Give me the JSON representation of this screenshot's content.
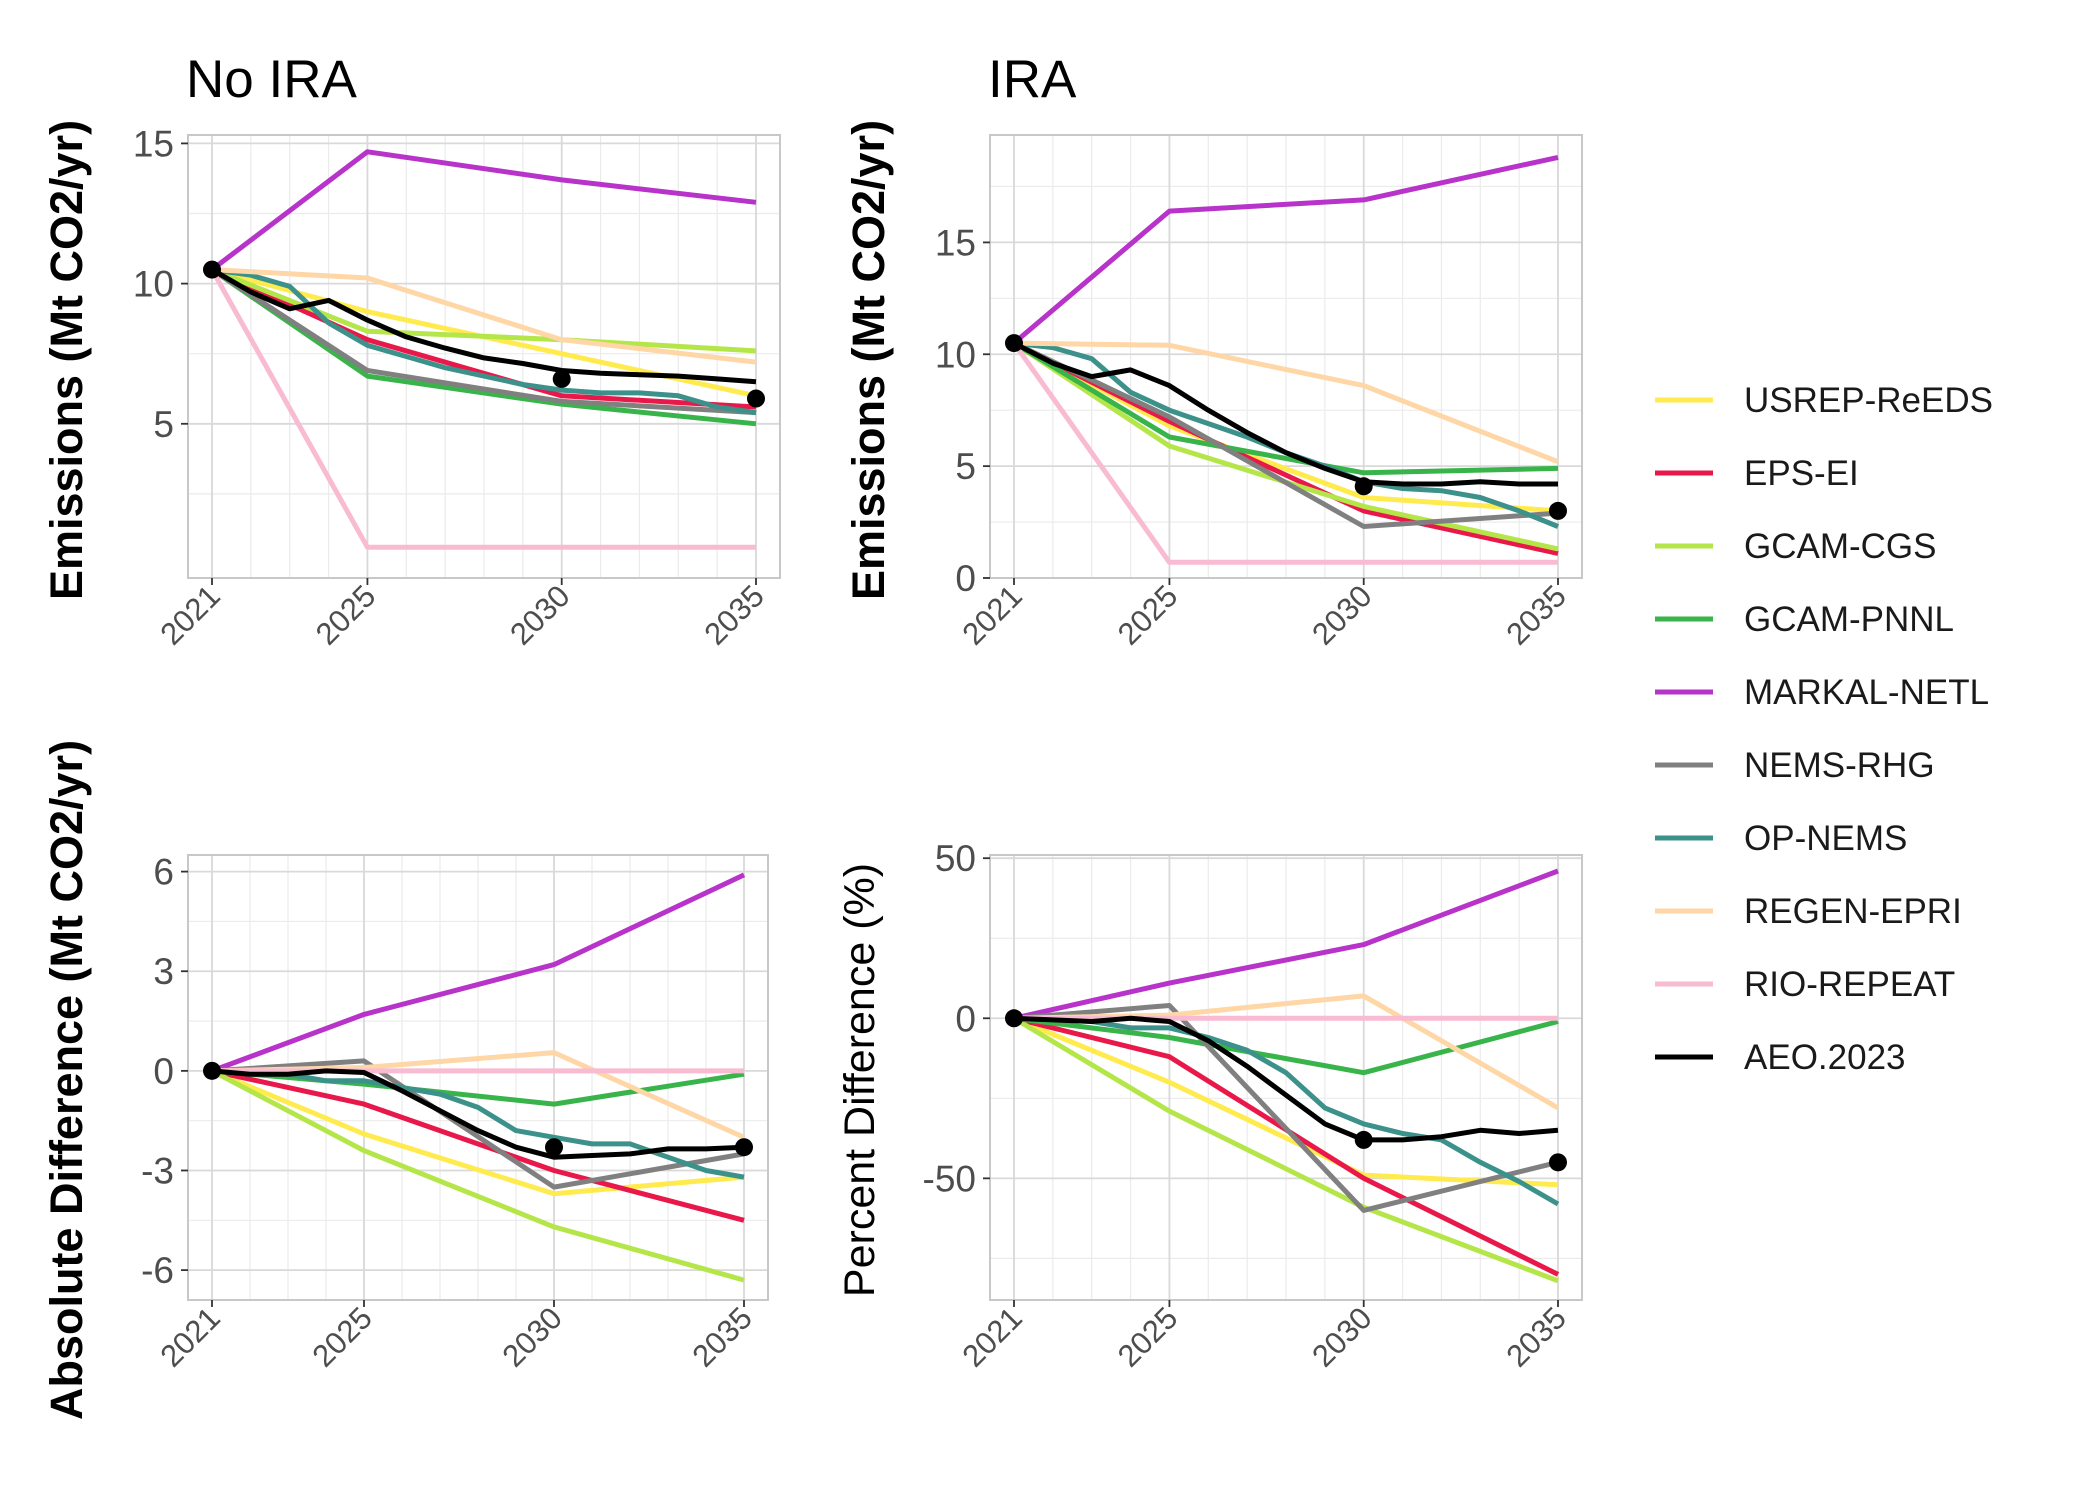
{
  "chart_data": [
    {
      "type": "line",
      "id": "no_ira",
      "title": "No IRA",
      "ylabel": "Emissions (Mt CO2/yr)",
      "xlabel": "",
      "xlim": [
        2021,
        2035
      ],
      "ylim": [
        -0.5,
        15.3
      ],
      "xticks": [
        2021,
        2025,
        2030,
        2035
      ],
      "yticks": [
        5,
        10,
        15
      ],
      "ytick_labels": [
        "5",
        "10",
        "15"
      ],
      "grid": true,
      "series": [
        {
          "name": "USREP-ReEDS",
          "x": [
            2021,
            2025,
            2030,
            2035
          ],
          "y": [
            10.5,
            9.0,
            7.5,
            6.0
          ]
        },
        {
          "name": "EPS-EI",
          "x": [
            2021,
            2025,
            2030,
            2035
          ],
          "y": [
            10.5,
            8.0,
            6.0,
            5.6
          ]
        },
        {
          "name": "GCAM-CGS",
          "x": [
            2021,
            2025,
            2030,
            2035
          ],
          "y": [
            10.5,
            8.3,
            8.0,
            7.6
          ]
        },
        {
          "name": "GCAM-PNNL",
          "x": [
            2021,
            2025,
            2030,
            2035
          ],
          "y": [
            10.5,
            6.7,
            5.7,
            5.0
          ]
        },
        {
          "name": "MARKAL-NETL",
          "x": [
            2021,
            2025,
            2030,
            2035
          ],
          "y": [
            10.5,
            14.7,
            13.7,
            12.9
          ]
        },
        {
          "name": "NEMS-RHG",
          "x": [
            2021,
            2025,
            2030,
            2035
          ],
          "y": [
            10.5,
            6.9,
            5.8,
            5.4
          ]
        },
        {
          "name": "OP-NEMS",
          "x": [
            2021,
            2022,
            2023,
            2024,
            2025,
            2026,
            2027,
            2028,
            2029,
            2030,
            2031,
            2032,
            2033,
            2034,
            2035
          ],
          "y": [
            10.5,
            10.3,
            9.9,
            8.6,
            7.8,
            7.4,
            7.0,
            6.7,
            6.4,
            6.2,
            6.1,
            6.1,
            6.0,
            5.6,
            5.4
          ]
        },
        {
          "name": "REGEN-EPRI",
          "x": [
            2021,
            2025,
            2030,
            2035
          ],
          "y": [
            10.5,
            10.2,
            8.0,
            7.2
          ]
        },
        {
          "name": "RIO-REPEAT",
          "x": [
            2021,
            2025,
            2030,
            2035
          ],
          "y": [
            10.5,
            0.6,
            0.6,
            0.6
          ]
        },
        {
          "name": "AEO.2023",
          "x": [
            2021,
            2022,
            2023,
            2024,
            2025,
            2026,
            2027,
            2028,
            2029,
            2030,
            2031,
            2032,
            2033,
            2034,
            2035
          ],
          "y": [
            10.5,
            9.7,
            9.1,
            9.4,
            8.7,
            8.1,
            7.7,
            7.35,
            7.15,
            6.9,
            6.8,
            6.75,
            6.7,
            6.6,
            6.5
          ],
          "points": {
            "x": [
              2021,
              2030,
              2035
            ],
            "y": [
              10.5,
              6.6,
              5.9
            ]
          }
        }
      ]
    },
    {
      "type": "line",
      "id": "ira",
      "title": "IRA",
      "ylabel": "Emissions (Mt CO2/yr)",
      "xlabel": "",
      "xlim": [
        2021,
        2035
      ],
      "ylim": [
        0,
        19.8
      ],
      "xticks": [
        2021,
        2025,
        2030,
        2035
      ],
      "yticks": [
        0,
        5,
        10,
        15
      ],
      "ytick_labels": [
        "0",
        "5",
        "10",
        "15"
      ],
      "grid": true,
      "series": [
        {
          "name": "USREP-ReEDS",
          "x": [
            2021,
            2025,
            2030,
            2035
          ],
          "y": [
            10.5,
            6.8,
            3.6,
            3.0
          ]
        },
        {
          "name": "EPS-EI",
          "x": [
            2021,
            2025,
            2030,
            2035
          ],
          "y": [
            10.5,
            7.0,
            3.0,
            1.1
          ]
        },
        {
          "name": "GCAM-CGS",
          "x": [
            2021,
            2025,
            2030,
            2035
          ],
          "y": [
            10.5,
            5.9,
            3.2,
            1.3
          ]
        },
        {
          "name": "GCAM-PNNL",
          "x": [
            2021,
            2025,
            2030,
            2035
          ],
          "y": [
            10.5,
            6.3,
            4.7,
            4.9
          ]
        },
        {
          "name": "MARKAL-NETL",
          "x": [
            2021,
            2025,
            2030,
            2035
          ],
          "y": [
            10.5,
            16.4,
            16.9,
            18.8
          ]
        },
        {
          "name": "NEMS-RHG",
          "x": [
            2021,
            2025,
            2030,
            2035
          ],
          "y": [
            10.5,
            7.2,
            2.3,
            2.9
          ]
        },
        {
          "name": "OP-NEMS",
          "x": [
            2021,
            2022,
            2023,
            2024,
            2025,
            2026,
            2027,
            2028,
            2029,
            2030,
            2031,
            2032,
            2033,
            2034,
            2035
          ],
          "y": [
            10.5,
            10.3,
            9.8,
            8.3,
            7.5,
            6.9,
            6.3,
            5.6,
            5.0,
            4.3,
            4.0,
            3.9,
            3.6,
            3.0,
            2.3
          ]
        },
        {
          "name": "REGEN-EPRI",
          "x": [
            2021,
            2025,
            2030,
            2035
          ],
          "y": [
            10.5,
            10.4,
            8.6,
            5.2
          ]
        },
        {
          "name": "RIO-REPEAT",
          "x": [
            2021,
            2025,
            2030,
            2035
          ],
          "y": [
            10.5,
            0.7,
            0.7,
            0.7
          ]
        },
        {
          "name": "AEO.2023",
          "x": [
            2021,
            2022,
            2023,
            2024,
            2025,
            2026,
            2027,
            2028,
            2029,
            2030,
            2031,
            2032,
            2033,
            2034,
            2035
          ],
          "y": [
            10.5,
            9.6,
            9.0,
            9.3,
            8.6,
            7.5,
            6.5,
            5.6,
            4.9,
            4.3,
            4.2,
            4.2,
            4.3,
            4.2,
            4.2
          ],
          "points": {
            "x": [
              2021,
              2030,
              2035
            ],
            "y": [
              10.5,
              4.1,
              3.0
            ]
          }
        }
      ]
    },
    {
      "type": "line",
      "id": "abs_diff",
      "title": "",
      "ylabel": "Absolute Difference (Mt CO2/yr)",
      "xlabel": "",
      "xlim": [
        2021,
        2035
      ],
      "ylim": [
        -6.9,
        6.5
      ],
      "xticks": [
        2021,
        2025,
        2030,
        2035
      ],
      "yticks": [
        -6,
        -3,
        0,
        3,
        6
      ],
      "ytick_labels": [
        "-6",
        "-3",
        "0",
        "3",
        "6"
      ],
      "grid": true,
      "series": [
        {
          "name": "USREP-ReEDS",
          "x": [
            2021,
            2025,
            2030,
            2035
          ],
          "y": [
            0,
            -1.9,
            -3.7,
            -3.2
          ]
        },
        {
          "name": "EPS-EI",
          "x": [
            2021,
            2025,
            2030,
            2035
          ],
          "y": [
            0,
            -1.0,
            -3.0,
            -4.5
          ]
        },
        {
          "name": "GCAM-CGS",
          "x": [
            2021,
            2025,
            2030,
            2035
          ],
          "y": [
            0,
            -2.4,
            -4.7,
            -6.3
          ]
        },
        {
          "name": "GCAM-PNNL",
          "x": [
            2021,
            2025,
            2030,
            2035
          ],
          "y": [
            0,
            -0.4,
            -1.0,
            -0.1
          ]
        },
        {
          "name": "MARKAL-NETL",
          "x": [
            2021,
            2025,
            2030,
            2035
          ],
          "y": [
            0,
            1.7,
            3.2,
            5.9
          ]
        },
        {
          "name": "NEMS-RHG",
          "x": [
            2021,
            2025,
            2030,
            2035
          ],
          "y": [
            0,
            0.3,
            -3.5,
            -2.5
          ]
        },
        {
          "name": "OP-NEMS",
          "x": [
            2021,
            2022,
            2023,
            2024,
            2025,
            2026,
            2027,
            2028,
            2029,
            2030,
            2031,
            2032,
            2033,
            2034,
            2035
          ],
          "y": [
            0,
            0,
            -0.1,
            -0.3,
            -0.3,
            -0.5,
            -0.7,
            -1.1,
            -1.8,
            -2.0,
            -2.2,
            -2.2,
            -2.6,
            -3.0,
            -3.2
          ]
        },
        {
          "name": "REGEN-EPRI",
          "x": [
            2021,
            2025,
            2030,
            2035
          ],
          "y": [
            0,
            0.1,
            0.55,
            -2.0
          ]
        },
        {
          "name": "RIO-REPEAT",
          "x": [
            2021,
            2025,
            2030,
            2035
          ],
          "y": [
            0,
            0,
            0,
            0
          ]
        },
        {
          "name": "AEO.2023",
          "x": [
            2021,
            2022,
            2023,
            2024,
            2025,
            2026,
            2027,
            2028,
            2029,
            2030,
            2031,
            2032,
            2033,
            2034,
            2035
          ],
          "y": [
            0,
            -0.1,
            -0.1,
            0,
            -0.05,
            -0.6,
            -1.2,
            -1.8,
            -2.3,
            -2.6,
            -2.55,
            -2.5,
            -2.35,
            -2.35,
            -2.3
          ],
          "points": {
            "x": [
              2021,
              2030,
              2035
            ],
            "y": [
              0,
              -2.3,
              -2.3
            ]
          }
        }
      ]
    },
    {
      "type": "line",
      "id": "pct_diff",
      "title": "",
      "ylabel": "Percent Difference (%)",
      "xlabel": "",
      "xlim": [
        2021,
        2035
      ],
      "ylim": [
        -88,
        51
      ],
      "xticks": [
        2021,
        2025,
        2030,
        2035
      ],
      "yticks": [
        -50,
        0,
        50
      ],
      "ytick_labels": [
        "-50",
        "0",
        "50"
      ],
      "grid": true,
      "series": [
        {
          "name": "USREP-ReEDS",
          "x": [
            2021,
            2025,
            2030,
            2035
          ],
          "y": [
            0,
            -20,
            -49,
            -52
          ]
        },
        {
          "name": "EPS-EI",
          "x": [
            2021,
            2025,
            2030,
            2035
          ],
          "y": [
            0,
            -12,
            -50,
            -80
          ]
        },
        {
          "name": "GCAM-CGS",
          "x": [
            2021,
            2025,
            2030,
            2035
          ],
          "y": [
            0,
            -29,
            -59,
            -82
          ]
        },
        {
          "name": "GCAM-PNNL",
          "x": [
            2021,
            2025,
            2030,
            2035
          ],
          "y": [
            0,
            -6,
            -17,
            -1
          ]
        },
        {
          "name": "MARKAL-NETL",
          "x": [
            2021,
            2025,
            2030,
            2035
          ],
          "y": [
            0,
            11,
            23,
            46
          ]
        },
        {
          "name": "NEMS-RHG",
          "x": [
            2021,
            2025,
            2030,
            2035
          ],
          "y": [
            0,
            4,
            -60,
            -45
          ]
        },
        {
          "name": "OP-NEMS",
          "x": [
            2021,
            2022,
            2023,
            2024,
            2025,
            2026,
            2027,
            2028,
            2029,
            2030,
            2031,
            2032,
            2033,
            2034,
            2035
          ],
          "y": [
            0,
            0,
            -1,
            -3,
            -3,
            -6,
            -10,
            -17,
            -28,
            -33,
            -36,
            -38,
            -45,
            -51,
            -58
          ]
        },
        {
          "name": "REGEN-EPRI",
          "x": [
            2021,
            2025,
            2030,
            2035
          ],
          "y": [
            0,
            1,
            7,
            -28
          ]
        },
        {
          "name": "RIO-REPEAT",
          "x": [
            2021,
            2025,
            2030,
            2035
          ],
          "y": [
            0,
            0,
            0,
            0
          ]
        },
        {
          "name": "AEO.2023",
          "x": [
            2021,
            2022,
            2023,
            2024,
            2025,
            2026,
            2027,
            2028,
            2029,
            2030,
            2031,
            2032,
            2033,
            2034,
            2035
          ],
          "y": [
            0,
            -0.5,
            -1,
            0,
            -1,
            -7,
            -15,
            -24,
            -33,
            -38,
            -38,
            -37,
            -35,
            -36,
            -35
          ],
          "points": {
            "x": [
              2021,
              2030,
              2035
            ],
            "y": [
              0,
              -38,
              -45
            ]
          }
        }
      ]
    }
  ],
  "legend": {
    "placement": "right",
    "items": [
      {
        "name": "USREP-ReEDS",
        "color": "#FFEB4D"
      },
      {
        "name": "EPS-EI",
        "color": "#E8194A"
      },
      {
        "name": "GCAM-CGS",
        "color": "#B5E649"
      },
      {
        "name": "GCAM-PNNL",
        "color": "#38B44A"
      },
      {
        "name": "MARKAL-NETL",
        "color": "#B733C9"
      },
      {
        "name": "NEMS-RHG",
        "color": "#808080"
      },
      {
        "name": "OP-NEMS",
        "color": "#3C918A"
      },
      {
        "name": "REGEN-EPRI",
        "color": "#FFD6A6"
      },
      {
        "name": "RIO-REPEAT",
        "color": "#F8BBD2"
      },
      {
        "name": "AEO.2023",
        "color": "#000000"
      }
    ]
  }
}
